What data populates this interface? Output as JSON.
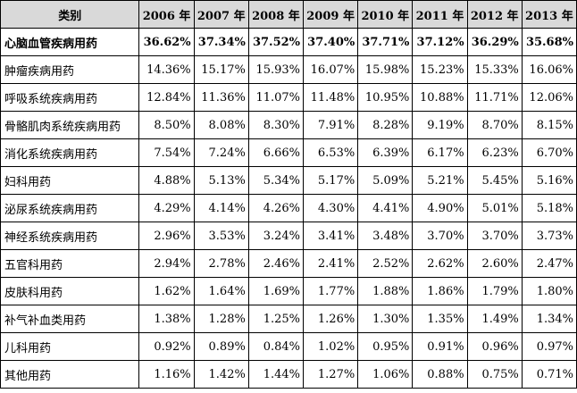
{
  "table": {
    "headers": [
      "类别",
      "2006 年",
      "2007 年",
      "2008 年",
      "2009 年",
      "2010 年",
      "2011 年",
      "2012 年",
      "2013 年"
    ],
    "rows": [
      {
        "category": "心脑血管疾病用药",
        "values": [
          "36.62%",
          "37.34%",
          "37.52%",
          "37.40%",
          "37.71%",
          "37.12%",
          "36.29%",
          "35.68%"
        ]
      },
      {
        "category": "肿瘤疾病用药",
        "values": [
          "14.36%",
          "15.17%",
          "15.93%",
          "16.07%",
          "15.98%",
          "15.23%",
          "15.33%",
          "16.06%"
        ]
      },
      {
        "category": "呼吸系统疾病用药",
        "values": [
          "12.84%",
          "11.36%",
          "11.07%",
          "11.48%",
          "10.95%",
          "10.88%",
          "11.71%",
          "12.06%"
        ]
      },
      {
        "category": "骨骼肌肉系统疾病用药",
        "values": [
          "8.50%",
          "8.08%",
          "8.30%",
          "7.91%",
          "8.28%",
          "9.19%",
          "8.70%",
          "8.15%"
        ]
      },
      {
        "category": "消化系统疾病用药",
        "values": [
          "7.54%",
          "7.24%",
          "6.66%",
          "6.53%",
          "6.39%",
          "6.17%",
          "6.23%",
          "6.70%"
        ]
      },
      {
        "category": "妇科用药",
        "values": [
          "4.88%",
          "5.13%",
          "5.34%",
          "5.17%",
          "5.09%",
          "5.21%",
          "5.45%",
          "5.16%"
        ]
      },
      {
        "category": "泌尿系统疾病用药",
        "values": [
          "4.29%",
          "4.14%",
          "4.26%",
          "4.30%",
          "4.41%",
          "4.90%",
          "5.01%",
          "5.18%"
        ]
      },
      {
        "category": "神经系统疾病用药",
        "values": [
          "2.96%",
          "3.53%",
          "3.24%",
          "3.41%",
          "3.48%",
          "3.70%",
          "3.70%",
          "3.73%"
        ]
      },
      {
        "category": "五官科用药",
        "values": [
          "2.94%",
          "2.78%",
          "2.46%",
          "2.41%",
          "2.52%",
          "2.62%",
          "2.60%",
          "2.47%"
        ]
      },
      {
        "category": "皮肤科用药",
        "values": [
          "1.62%",
          "1.64%",
          "1.69%",
          "1.77%",
          "1.88%",
          "1.86%",
          "1.79%",
          "1.80%"
        ]
      },
      {
        "category": "补气补血类用药",
        "values": [
          "1.38%",
          "1.28%",
          "1.25%",
          "1.26%",
          "1.30%",
          "1.35%",
          "1.49%",
          "1.34%"
        ]
      },
      {
        "category": "儿科用药",
        "values": [
          "0.92%",
          "0.89%",
          "0.84%",
          "1.02%",
          "0.95%",
          "0.91%",
          "0.96%",
          "0.97%"
        ]
      },
      {
        "category": "其他用药",
        "values": [
          "1.16%",
          "1.42%",
          "1.44%",
          "1.27%",
          "1.06%",
          "0.88%",
          "0.75%",
          "0.71%"
        ]
      }
    ]
  }
}
